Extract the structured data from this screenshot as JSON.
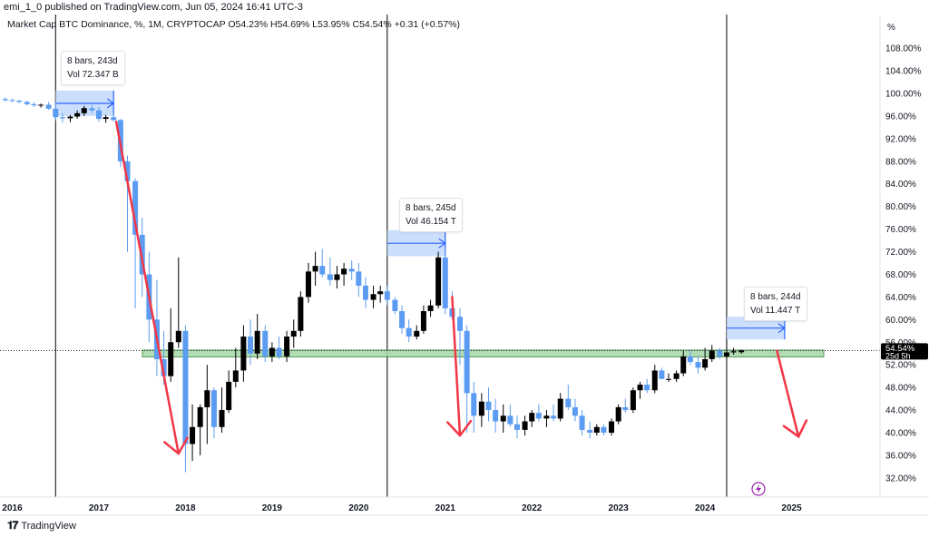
{
  "header": {
    "published": "emi_1_0 published on TradingView.com, Jun 05, 2024 16:41 UTC-3",
    "legend": "Market Cap BTC Dominance, %, 1M, CRYPTOCAP  O54.23%  H54.69%  L53.95%  C54.54%  +0.31 (+0.57%)"
  },
  "footer": {
    "brand": "TradingView",
    "logo_icon": "tradingview-logo-icon"
  },
  "price_axis": {
    "unit_label": "%",
    "last_price": "54.54%",
    "countdown": "25d 5h"
  },
  "annotations": [
    {
      "line1": "8 bars, 243d",
      "line2": "Vol 72.347 B"
    },
    {
      "line1": "8 bars, 245d",
      "line2": "Vol 46.154 T"
    },
    {
      "line1": "8 bars, 244d",
      "line2": "Vol 11.447 T"
    }
  ],
  "colors": {
    "up": "#000000",
    "down": "#5b9cf2",
    "arrow": "#f23645",
    "range_fill": "#bed6fb",
    "range_arrow": "#2962ff",
    "zone_fill": "#a5d6a7",
    "zone_border": "#388e3c",
    "axis_badge": "#000000"
  },
  "chart_data": {
    "type": "candlestick",
    "title": "Market Cap BTC Dominance",
    "xlabel": "",
    "ylabel": "%",
    "ylim": [
      30,
      110
    ],
    "y_ticks": [
      "32.00%",
      "36.00%",
      "40.00%",
      "44.00%",
      "48.00%",
      "52.00%",
      "56.00%",
      "60.00%",
      "64.00%",
      "68.00%",
      "72.00%",
      "76.00%",
      "80.00%",
      "84.00%",
      "88.00%",
      "92.00%",
      "96.00%",
      "100.00%",
      "104.00%",
      "108.00%"
    ],
    "x_ticks": [
      "2016",
      "2017",
      "2018",
      "2019",
      "2020",
      "2021",
      "2022",
      "2023",
      "2024",
      "2025"
    ],
    "x_range": [
      2015.9,
      2026.0
    ],
    "support_zone": [
      53.4,
      54.6
    ],
    "vertical_markers": [
      2016.5,
      2020.33,
      2024.25
    ],
    "ranges": [
      {
        "x0": 2016.5,
        "x1": 2017.17,
        "y0": 96.0,
        "y1": 100.5
      },
      {
        "x0": 2020.33,
        "x1": 2021.0,
        "y0": 71.2,
        "y1": 75.8
      },
      {
        "x0": 2024.25,
        "x1": 2024.92,
        "y0": 56.5,
        "y1": 60.5
      }
    ],
    "arrows": [
      {
        "x0": 2017.2,
        "y0": 95.0,
        "x1": 2017.92,
        "y1": 36.3
      },
      {
        "x0": 2021.08,
        "y0": 64.0,
        "x1": 2021.17,
        "y1": 39.5
      },
      {
        "x0": 2024.83,
        "y0": 54.5,
        "x1": 2025.08,
        "y1": 39.3
      }
    ],
    "candles": [
      [
        2015.92,
        99.0,
        99.3,
        98.6,
        98.8
      ],
      [
        2016.0,
        98.8,
        99.1,
        98.5,
        98.7
      ],
      [
        2016.08,
        98.7,
        98.9,
        98.3,
        98.5
      ],
      [
        2016.17,
        98.5,
        98.7,
        97.9,
        98.1
      ],
      [
        2016.25,
        98.1,
        98.4,
        97.6,
        97.9
      ],
      [
        2016.33,
        97.9,
        98.2,
        97.5,
        98.0
      ],
      [
        2016.42,
        98.0,
        98.5,
        97.1,
        97.3
      ],
      [
        2016.5,
        97.3,
        98.5,
        95.2,
        95.8
      ],
      [
        2016.58,
        95.8,
        96.5,
        94.8,
        95.6
      ],
      [
        2016.67,
        95.6,
        96.2,
        94.9,
        95.9
      ],
      [
        2016.75,
        95.9,
        97.0,
        95.5,
        96.5
      ],
      [
        2016.83,
        96.5,
        97.8,
        96.0,
        97.4
      ],
      [
        2016.92,
        97.4,
        98.0,
        96.5,
        97.0
      ],
      [
        2017.0,
        97.0,
        97.6,
        95.0,
        95.5
      ],
      [
        2017.08,
        95.5,
        96.2,
        94.8,
        95.8
      ],
      [
        2017.17,
        95.8,
        96.5,
        95.0,
        95.3
      ],
      [
        2017.25,
        95.3,
        95.5,
        87.0,
        88.0
      ],
      [
        2017.33,
        88.0,
        89.0,
        72.0,
        84.5
      ],
      [
        2017.42,
        84.5,
        85.0,
        62.0,
        75.0
      ],
      [
        2017.5,
        75.0,
        78.0,
        64.0,
        68.0
      ],
      [
        2017.58,
        68.0,
        72.0,
        56.0,
        60.0
      ],
      [
        2017.67,
        60.0,
        67.0,
        50.0,
        53.0
      ],
      [
        2017.75,
        53.0,
        58.0,
        48.5,
        50.0
      ],
      [
        2017.83,
        50.0,
        62.0,
        49.0,
        56.0
      ],
      [
        2017.92,
        56.0,
        71.0,
        55.0,
        58.0
      ],
      [
        2018.0,
        58.0,
        59.0,
        33.0,
        38.0
      ],
      [
        2018.08,
        38.0,
        45.0,
        35.0,
        41.0
      ],
      [
        2018.17,
        41.0,
        45.0,
        36.0,
        44.5
      ],
      [
        2018.25,
        44.5,
        52.0,
        38.0,
        47.5
      ],
      [
        2018.33,
        47.5,
        48.0,
        39.0,
        41.0
      ],
      [
        2018.42,
        41.0,
        48.0,
        40.0,
        44.0
      ],
      [
        2018.5,
        44.0,
        51.0,
        43.5,
        49.0
      ],
      [
        2018.58,
        49.0,
        55.0,
        48.0,
        51.0
      ],
      [
        2018.67,
        51.0,
        59.0,
        49.0,
        57.0
      ],
      [
        2018.75,
        57.0,
        60.0,
        52.0,
        54.0
      ],
      [
        2018.83,
        54.0,
        61.0,
        53.0,
        58.0
      ],
      [
        2018.92,
        58.0,
        59.0,
        52.5,
        53.5
      ],
      [
        2019.0,
        53.5,
        56.0,
        52.5,
        55.0
      ],
      [
        2019.08,
        55.0,
        57.0,
        53.0,
        53.5
      ],
      [
        2019.17,
        53.5,
        58.0,
        52.5,
        57.0
      ],
      [
        2019.25,
        57.0,
        60.0,
        55.0,
        58.0
      ],
      [
        2019.33,
        58.0,
        65.0,
        57.0,
        64.0
      ],
      [
        2019.42,
        64.0,
        70.0,
        63.0,
        68.5
      ],
      [
        2019.5,
        68.5,
        72.0,
        66.0,
        69.5
      ],
      [
        2019.58,
        69.5,
        72.5,
        67.5,
        68.0
      ],
      [
        2019.67,
        68.0,
        71.0,
        66.0,
        67.0
      ],
      [
        2019.75,
        67.0,
        69.5,
        65.5,
        68.0
      ],
      [
        2019.83,
        68.0,
        70.0,
        66.0,
        69.0
      ],
      [
        2019.92,
        69.0,
        70.5,
        67.0,
        68.5
      ],
      [
        2020.0,
        68.5,
        70.0,
        64.0,
        66.0
      ],
      [
        2020.08,
        66.0,
        67.5,
        62.0,
        63.5
      ],
      [
        2020.17,
        63.5,
        66.0,
        62.0,
        64.5
      ],
      [
        2020.25,
        64.5,
        66.0,
        63.0,
        65.0
      ],
      [
        2020.33,
        65.0,
        66.0,
        62.5,
        63.5
      ],
      [
        2020.42,
        63.5,
        64.0,
        61.0,
        61.5
      ],
      [
        2020.5,
        61.5,
        62.5,
        57.5,
        58.5
      ],
      [
        2020.58,
        58.5,
        60.0,
        56.0,
        57.0
      ],
      [
        2020.67,
        57.0,
        59.0,
        56.5,
        58.0
      ],
      [
        2020.75,
        58.0,
        62.5,
        57.5,
        61.5
      ],
      [
        2020.83,
        61.5,
        63.5,
        60.5,
        62.5
      ],
      [
        2020.92,
        62.5,
        72.0,
        62.0,
        71.0
      ],
      [
        2021.0,
        71.0,
        72.5,
        61.0,
        62.0
      ],
      [
        2021.08,
        62.0,
        65.0,
        60.0,
        60.5
      ],
      [
        2021.17,
        60.5,
        62.0,
        52.0,
        58.0
      ],
      [
        2021.25,
        58.0,
        59.0,
        40.0,
        47.0
      ],
      [
        2021.33,
        47.0,
        49.0,
        40.0,
        43.0
      ],
      [
        2021.42,
        43.0,
        47.0,
        41.0,
        45.5
      ],
      [
        2021.5,
        45.5,
        48.0,
        42.0,
        44.0
      ],
      [
        2021.58,
        44.0,
        46.0,
        40.0,
        42.0
      ],
      [
        2021.67,
        42.0,
        45.0,
        40.0,
        43.0
      ],
      [
        2021.75,
        43.0,
        45.0,
        41.0,
        41.5
      ],
      [
        2021.83,
        41.5,
        43.0,
        39.0,
        40.5
      ],
      [
        2021.92,
        40.5,
        43.0,
        39.5,
        42.0
      ],
      [
        2022.0,
        42.0,
        44.0,
        41.0,
        43.5
      ],
      [
        2022.08,
        43.5,
        45.0,
        42.0,
        42.5
      ],
      [
        2022.17,
        42.5,
        44.0,
        41.0,
        43.0
      ],
      [
        2022.25,
        43.0,
        45.0,
        42.0,
        42.5
      ],
      [
        2022.33,
        42.5,
        47.0,
        42.0,
        46.0
      ],
      [
        2022.42,
        46.0,
        48.5,
        44.0,
        44.5
      ],
      [
        2022.5,
        44.5,
        46.0,
        42.0,
        43.0
      ],
      [
        2022.58,
        43.0,
        44.0,
        39.5,
        40.5
      ],
      [
        2022.67,
        40.5,
        42.0,
        39.0,
        40.0
      ],
      [
        2022.75,
        40.0,
        41.5,
        39.5,
        41.0
      ],
      [
        2022.83,
        41.0,
        41.5,
        39.5,
        40.0
      ],
      [
        2022.92,
        40.0,
        42.5,
        39.5,
        42.0
      ],
      [
        2023.0,
        42.0,
        45.0,
        41.5,
        44.5
      ],
      [
        2023.08,
        44.5,
        46.0,
        43.5,
        44.0
      ],
      [
        2023.17,
        44.0,
        48.0,
        43.5,
        47.5
      ],
      [
        2023.25,
        47.5,
        49.0,
        46.0,
        48.5
      ],
      [
        2023.33,
        48.5,
        49.5,
        47.0,
        47.5
      ],
      [
        2023.42,
        47.5,
        52.0,
        47.0,
        51.0
      ],
      [
        2023.5,
        51.0,
        51.5,
        49.5,
        49.5
      ],
      [
        2023.58,
        49.5,
        50.5,
        49.0,
        49.5
      ],
      [
        2023.67,
        49.5,
        51.0,
        49.0,
        50.5
      ],
      [
        2023.75,
        50.5,
        54.5,
        50.0,
        53.5
      ],
      [
        2023.83,
        53.5,
        54.5,
        52.0,
        52.5
      ],
      [
        2023.92,
        52.5,
        53.5,
        50.5,
        51.5
      ],
      [
        2024.0,
        51.5,
        55.0,
        51.0,
        53.0
      ],
      [
        2024.08,
        53.0,
        55.5,
        52.5,
        54.5
      ],
      [
        2024.17,
        54.5,
        55.0,
        53.0,
        53.5
      ],
      [
        2024.25,
        53.5,
        56.5,
        53.0,
        54.2
      ],
      [
        2024.33,
        54.2,
        55.0,
        53.8,
        54.4
      ],
      [
        2024.42,
        54.23,
        54.69,
        53.95,
        54.54
      ]
    ]
  }
}
